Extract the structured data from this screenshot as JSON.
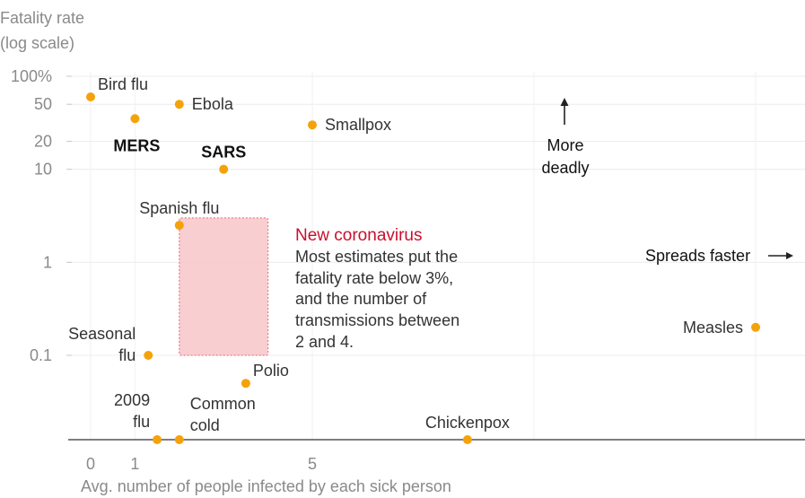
{
  "chart_data": {
    "type": "scatter",
    "ylabel_lines": [
      "Fatality rate",
      "(log scale)"
    ],
    "xlabel": "Avg. number of people infected by each sick person",
    "x_ticks": [
      {
        "value": 0,
        "label": "0"
      },
      {
        "value": 1,
        "label": "1"
      },
      {
        "value": 5,
        "label": "5"
      }
    ],
    "y_ticks": [
      {
        "value": 100,
        "label": "100%"
      },
      {
        "value": 50,
        "label": "50"
      },
      {
        "value": 20,
        "label": "20"
      },
      {
        "value": 10,
        "label": "10"
      },
      {
        "value": 1,
        "label": "1"
      },
      {
        "value": 0.1,
        "label": "0.1"
      }
    ],
    "y_scale": "log",
    "xlim": [
      -0.5,
      16
    ],
    "points": [
      {
        "label_lines": [
          "Bird flu"
        ],
        "x": 0,
        "y": 60,
        "label_pos": "top-right",
        "label_weight": "normal"
      },
      {
        "label_lines": [
          "MERS"
        ],
        "x": 1,
        "y": 35,
        "label_pos": "below",
        "label_weight": "bold"
      },
      {
        "label_lines": [
          "Ebola"
        ],
        "x": 2,
        "y": 50,
        "label_pos": "right",
        "label_weight": "normal"
      },
      {
        "label_lines": [
          "Smallpox"
        ],
        "x": 5,
        "y": 30,
        "label_pos": "right",
        "label_weight": "normal"
      },
      {
        "label_lines": [
          "SARS"
        ],
        "x": 3,
        "y": 10,
        "label_pos": "above",
        "label_weight": "bold"
      },
      {
        "label_lines": [
          "Spanish flu"
        ],
        "x": 2,
        "y": 2.5,
        "label_pos": "above",
        "label_weight": "normal"
      },
      {
        "label_lines": [
          "Seasonal",
          "flu"
        ],
        "x": 1.3,
        "y": 0.1,
        "label_pos": "left",
        "label_weight": "normal"
      },
      {
        "label_lines": [
          "Polio"
        ],
        "x": 3.5,
        "y": 0.05,
        "label_pos": "top-right",
        "label_weight": "normal"
      },
      {
        "label_lines": [
          "2009",
          "flu"
        ],
        "x": 1.5,
        "y": 0.01,
        "label_pos": "left-above",
        "label_weight": "normal"
      },
      {
        "label_lines": [
          "Common",
          "cold"
        ],
        "x": 2,
        "y": 0.01,
        "label_pos": "right-above",
        "label_weight": "normal"
      },
      {
        "label_lines": [
          "Chickenpox"
        ],
        "x": 8.5,
        "y": 0.01,
        "label_pos": "above",
        "label_weight": "normal"
      },
      {
        "label_lines": [
          "Measles"
        ],
        "x": 15,
        "y": 0.2,
        "label_pos": "left",
        "label_weight": "normal"
      }
    ],
    "highlight_region": {
      "x_range": [
        2,
        4
      ],
      "y_range": [
        0.1,
        3
      ],
      "title": "New coronavirus",
      "text_lines": [
        "Most estimates put the",
        "fatality rate below 3%,",
        "and the number of",
        "transmissions between",
        "2 and 4."
      ]
    },
    "annotations": {
      "deadly_lines": [
        "More",
        "deadly"
      ],
      "faster": "Spreads faster"
    },
    "colors": {
      "point": "#f5a20a",
      "region_fill": "#f7c5c8",
      "region_border": "#e8808a",
      "highlight_title": "#c8102e",
      "grid": "#ececec",
      "axis": "#333333",
      "text": "#333333",
      "muted": "#8a8a8a"
    },
    "grid": true
  }
}
